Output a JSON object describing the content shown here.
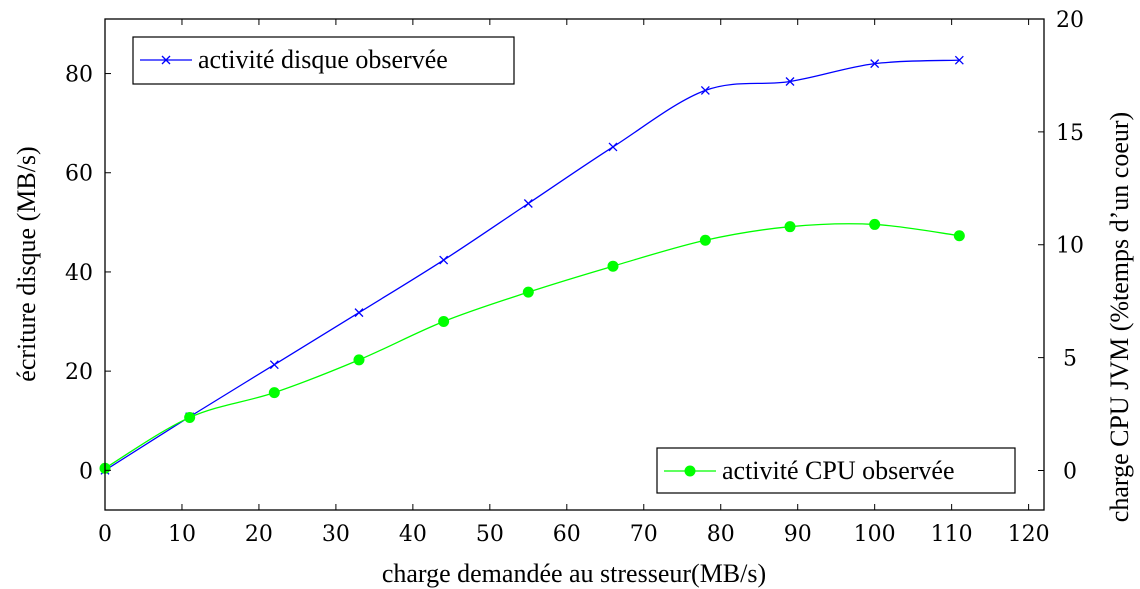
{
  "chart_data": {
    "type": "line",
    "xlabel": "charge demandée au stresseur(MB/s)",
    "ylabel_left": "écriture disque (MB/s)",
    "ylabel_right": "charge CPU JVM (%temps d’un coeur)",
    "xlim": [
      0,
      122
    ],
    "ylim_left": [
      -8,
      91
    ],
    "ylim_right": [
      -1.75,
      20
    ],
    "x_ticks": [
      0,
      10,
      20,
      30,
      40,
      50,
      60,
      70,
      80,
      90,
      100,
      110,
      120
    ],
    "y_ticks_left": [
      0,
      20,
      40,
      60,
      80
    ],
    "y_ticks_right": [
      0,
      5,
      10,
      15,
      20
    ],
    "grid": false,
    "series": [
      {
        "name": "activité disque observée",
        "axis": "left",
        "color": "#0000ff",
        "marker": "x",
        "legend_position": "top-left",
        "x": [
          0,
          11,
          22,
          33,
          44,
          55,
          66,
          78,
          89,
          100,
          111
        ],
        "y": [
          0,
          10.8,
          21.3,
          31.8,
          42.4,
          53.8,
          65.2,
          76.6,
          78.4,
          82.0,
          82.7
        ]
      },
      {
        "name": "activité CPU observée",
        "axis": "right",
        "color": "#00ff00",
        "marker": "circle",
        "legend_position": "bottom-right",
        "x": [
          0,
          11,
          22,
          33,
          44,
          55,
          66,
          78,
          89,
          100,
          111
        ],
        "y": [
          0.1,
          2.35,
          3.45,
          4.9,
          6.6,
          7.9,
          9.05,
          10.2,
          10.8,
          10.9,
          10.4
        ]
      }
    ]
  }
}
